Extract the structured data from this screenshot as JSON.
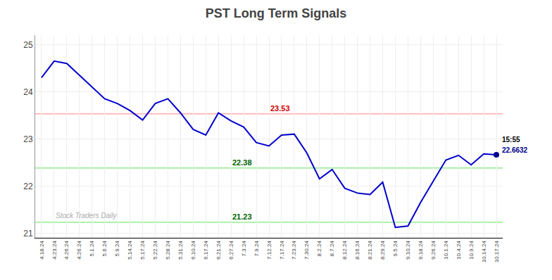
{
  "chart_data": {
    "type": "line",
    "title": "PST Long Term Signals",
    "categories": [
      "4.18.24",
      "4.23.24",
      "4.26.24",
      "4.26.24",
      "5.1.24",
      "5.6.24",
      "5.9.24",
      "5.14.24",
      "5.17.24",
      "5.22.24",
      "5.28.24",
      "5.31.24",
      "6.10.24",
      "6.17.24",
      "6.21.24",
      "6.27.24",
      "7.3.24",
      "7.9.24",
      "7.12.24",
      "7.17.24",
      "7.23.24",
      "7.30.24",
      "8.2.24",
      "8.7.24",
      "8.12.24",
      "8.16.24",
      "8.21.24",
      "8.29.24",
      "9.5.24",
      "9.10.24",
      "9.18.24",
      "9.26.24",
      "10.1.24",
      "10.4.24",
      "10.9.24",
      "10.14.24",
      "10.17.24"
    ],
    "values": [
      24.3,
      24.65,
      24.6,
      24.35,
      24.1,
      23.85,
      23.75,
      23.6,
      23.4,
      23.75,
      23.85,
      23.55,
      23.2,
      23.08,
      23.55,
      23.38,
      23.25,
      22.92,
      22.85,
      23.08,
      23.1,
      22.7,
      22.15,
      22.35,
      21.95,
      21.85,
      21.82,
      22.08,
      21.12,
      21.15,
      21.65,
      22.1,
      22.55,
      22.65,
      22.45,
      22.68,
      22.6632
    ],
    "color": "#0000cd",
    "ylim": [
      20.9,
      25.2
    ],
    "yticks": [
      21,
      22,
      23,
      24,
      25
    ],
    "grid": true,
    "reference_lines": [
      {
        "value": 23.53,
        "color": "#ffaaaa",
        "text_color": "#cc0000",
        "label_at": "7.12.24"
      },
      {
        "value": 22.38,
        "color": "#90ee90",
        "text_color": "#006400",
        "label_at": "6.27.24"
      },
      {
        "value": 21.23,
        "color": "#90ee90",
        "text_color": "#006400",
        "label_at": "6.27.24"
      }
    ],
    "last_point": {
      "value": 22.6632,
      "label": "15:55",
      "color": "#00008b"
    },
    "watermark": {
      "text": "Stock Traders Daily",
      "color": "#aaaaaa",
      "at": "4.23.24"
    }
  }
}
